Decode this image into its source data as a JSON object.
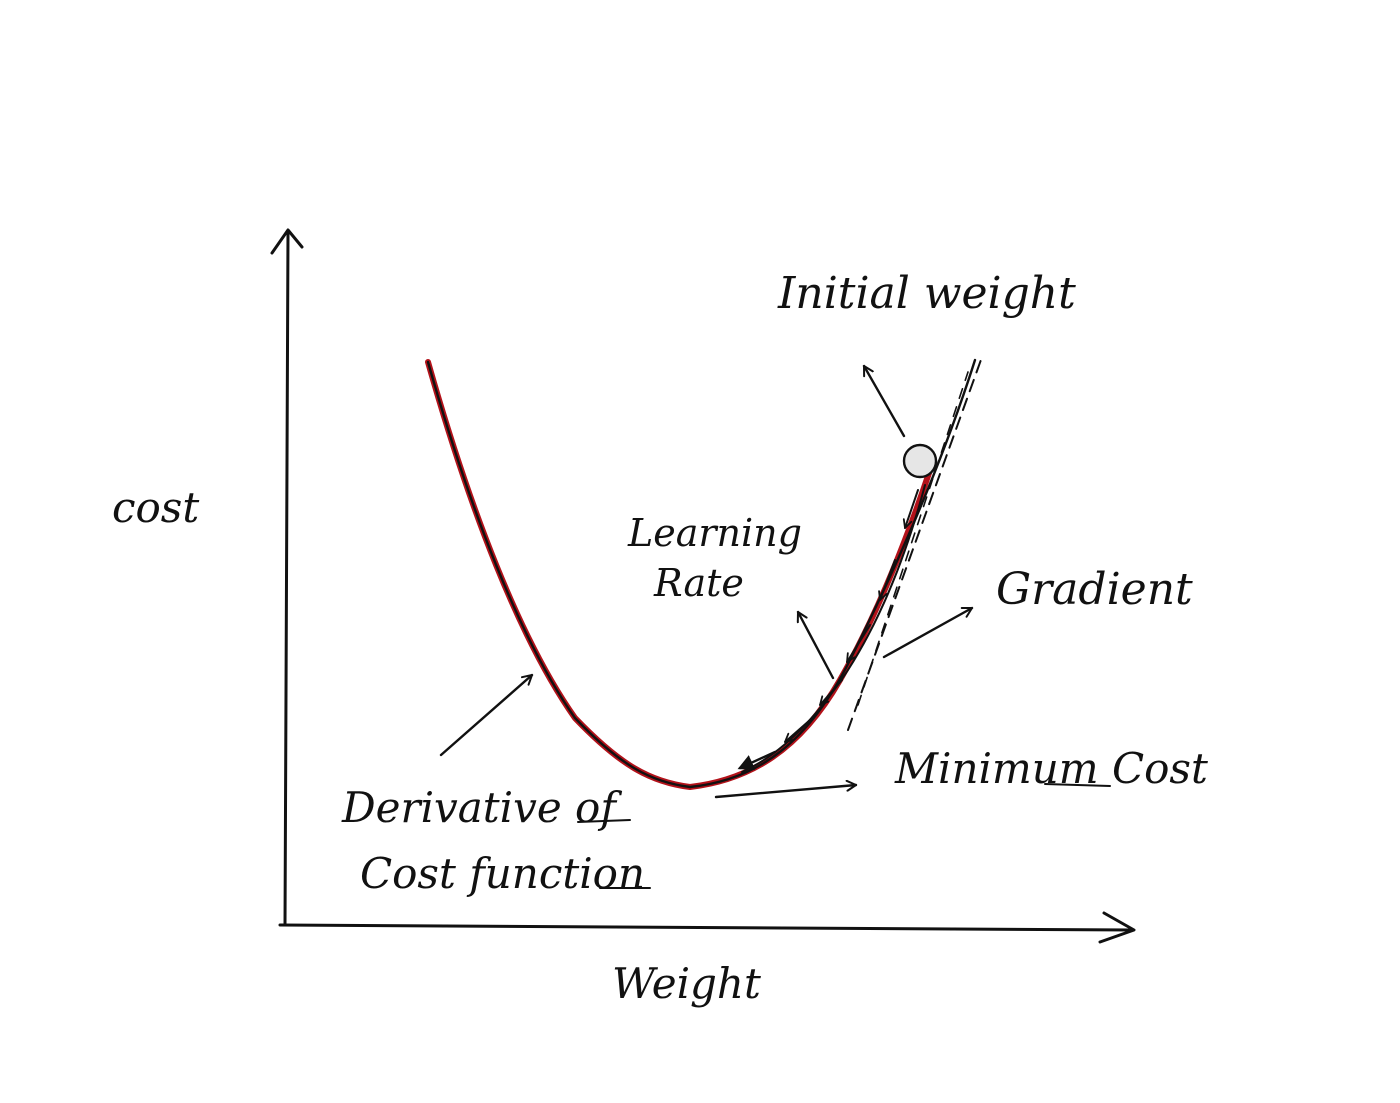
{
  "labels": {
    "y_axis": "cost",
    "x_axis": "Weight",
    "initial_weight": "Initial weight",
    "learning_rate_line1": "Learning",
    "learning_rate_line2": "Rate",
    "gradient": "Gradient",
    "minimum_cost": "Minimum Cost",
    "derivative_line1": "Derivative of",
    "derivative_line2": "Cost function"
  },
  "colors": {
    "ink": "#111111",
    "curve_highlight": "#b3121a",
    "ball_fill": "#e6e6e6",
    "background": "#ffffff"
  }
}
